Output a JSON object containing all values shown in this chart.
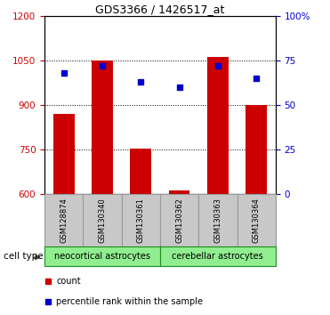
{
  "title": "GDS3366 / 1426517_at",
  "samples": [
    "GSM128874",
    "GSM130340",
    "GSM130361",
    "GSM130362",
    "GSM130363",
    "GSM130364"
  ],
  "bar_tops": [
    870,
    1050,
    752,
    610,
    1060,
    900
  ],
  "bar_bottom": 600,
  "percentile_values": [
    68,
    72,
    63,
    60,
    72,
    65
  ],
  "ylim_left": [
    600,
    1200
  ],
  "ylim_right": [
    0,
    100
  ],
  "yticks_left": [
    600,
    750,
    900,
    1050,
    1200
  ],
  "yticks_right": [
    0,
    25,
    50,
    75,
    100
  ],
  "bar_color": "#cc0000",
  "percentile_color": "#0000cc",
  "cell_type_label": "cell type",
  "group_labels": [
    "neocortical astrocytes",
    "cerebellar astrocytes"
  ],
  "group_color": "#90ee90",
  "group_border": "#228B22",
  "legend_items": [
    {
      "label": "count",
      "color": "#cc0000"
    },
    {
      "label": "percentile rank within the sample",
      "color": "#0000cc"
    }
  ],
  "tick_color_left": "#cc0000",
  "tick_color_right": "#0000cc",
  "sample_box_color": "#c8c8c8",
  "sample_box_edge": "#999999"
}
